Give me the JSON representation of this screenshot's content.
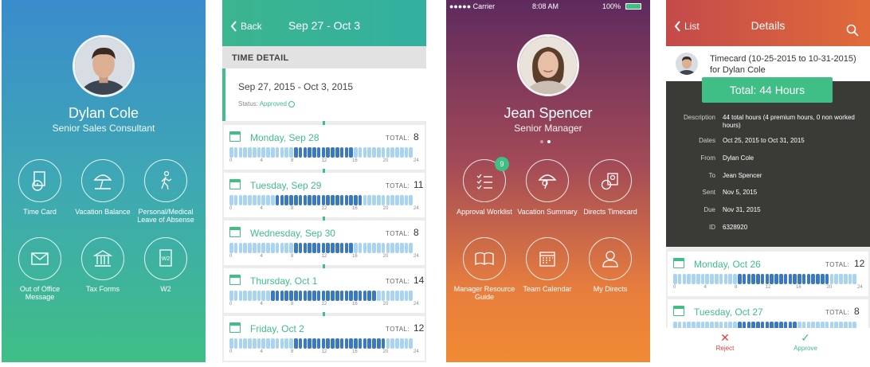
{
  "screen1": {
    "name": "Dylan Cole",
    "title": "Senior Sales Consultant",
    "tiles": [
      {
        "label": "Time Card",
        "icon": "timecard-icon"
      },
      {
        "label": "Vacation Balance",
        "icon": "beach-umbrella-icon"
      },
      {
        "label": "Personal/Medical Leave of Absense",
        "icon": "walking-person-icon"
      },
      {
        "label": "Out of Office Message",
        "icon": "envelope-icon"
      },
      {
        "label": "Tax Forms",
        "icon": "government-building-icon"
      },
      {
        "label": "W2",
        "icon": "w2-document-icon"
      }
    ]
  },
  "screen2": {
    "back_label": "Back",
    "header_title": "Sep 27 - Oct 3",
    "section_title": "TIME DETAIL",
    "period": "Sep 27, 2015 - Oct 3, 2015",
    "status_label": "Status:",
    "status_value": "Approved",
    "total_label": "TOTAL:",
    "tick_labels": [
      "0",
      "4",
      "8",
      "12",
      "16",
      "20",
      "24"
    ],
    "days": [
      {
        "name": "Monday, Sep 28",
        "total": "8",
        "active_hours": [
          8,
          16
        ]
      },
      {
        "name": "Tuesday, Sep 29",
        "total": "11",
        "active_hours": [
          6,
          17
        ]
      },
      {
        "name": "Wednesday, Sep 30",
        "total": "8",
        "active_hours": [
          8,
          16
        ]
      },
      {
        "name": "Thursday, Oct 1",
        "total": "14",
        "active_hours": [
          5,
          19
        ]
      },
      {
        "name": "Friday, Oct 2",
        "total": "12",
        "active_hours": [
          8,
          20
        ]
      }
    ]
  },
  "screen3": {
    "carrier": "●●●●● Carrier",
    "time": "8:08 AM",
    "battery": "100%",
    "name": "Jean Spencer",
    "title": "Senior Manager",
    "badge_count": "9",
    "tiles": [
      {
        "label": "Approval Worklist",
        "icon": "checklist-icon"
      },
      {
        "label": "Vacation Summary",
        "icon": "beach-umbrella-icon"
      },
      {
        "label": "Directs Timecard",
        "icon": "directs-timecard-icon"
      },
      {
        "label": "Manager Resource Guide",
        "icon": "open-book-icon"
      },
      {
        "label": "Team Calendar",
        "icon": "calendar-icon"
      },
      {
        "label": "My Directs",
        "icon": "person-icon"
      }
    ]
  },
  "screen4": {
    "back_label": "List",
    "header_title": "Details",
    "timecard_title": "Timecard (10-25-2015 to 10-31-2015) for Dylan Cole",
    "total_button": "Total: 44 Hours",
    "details": [
      {
        "key": "Description",
        "value": "44 total hours (4 premium hours, 0 non worked hours)"
      },
      {
        "key": "Dates",
        "value": "Oct 25, 2015 to Oct 31, 2015"
      },
      {
        "key": "From",
        "value": "Dylan Cole"
      },
      {
        "key": "To",
        "value": "Jean Spencer"
      },
      {
        "key": "Sent",
        "value": "Nov 5, 2015"
      },
      {
        "key": "Due",
        "value": "Nov 31, 2015"
      },
      {
        "key": "ID",
        "value": "6328920"
      }
    ],
    "total_label": "TOTAL:",
    "tick_labels": [
      "0",
      "4",
      "8",
      "12",
      "16",
      "20",
      "24"
    ],
    "days": [
      {
        "name": "Monday, Oct 26",
        "total": "12",
        "active_hours": [
          8,
          20
        ]
      },
      {
        "name": "Tuesday, Oct 27",
        "total": "8",
        "active_hours": [
          8,
          16
        ]
      }
    ],
    "reject_label": "Reject",
    "approve_label": "Approve"
  },
  "colors": {
    "accent_green": "#3fbe86",
    "bar_light": "#a9d4f1",
    "bar_dark": "#3a79bf",
    "reject_red": "#e23c3c"
  }
}
